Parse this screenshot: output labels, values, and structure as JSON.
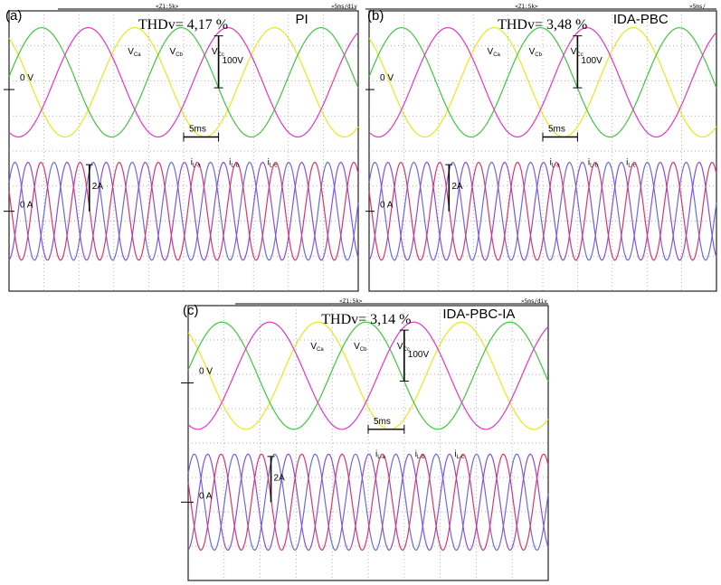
{
  "chart_data": [
    {
      "type": "line",
      "panel_label": "(a)",
      "controller": "PI",
      "thd_text": "THDv= 4,17 %",
      "header_trigger": "<Z1:5k>",
      "header_timebase": "»5ms/div",
      "voltage_labels": [
        "V",
        "V",
        "V"
      ],
      "voltage_subs": [
        "Ca",
        "Cb",
        "Cc"
      ],
      "current_labels": [
        "i",
        "i",
        "i"
      ],
      "current_subs": [
        "L-a",
        "L-b",
        "L-c"
      ],
      "zero_v_label": "0 V",
      "zero_a_label": "0 A",
      "scale_voltage": "100V",
      "scale_current": "2A",
      "scale_time": "5ms",
      "voltage_amplitude_v": 100,
      "voltage_period_ms": 20,
      "current_amplitude_a": 2,
      "current_period_ms": 5.6,
      "time_window_ms": 50,
      "colors": {
        "va": "#e8e81c",
        "vb": "#3cc83c",
        "vc": "#e633c8",
        "ia": "#6b6be0",
        "ib": "#8a4fd6",
        "ic": "#e0336b"
      }
    },
    {
      "type": "line",
      "panel_label": "(b)",
      "controller": "IDA-PBC",
      "thd_text": "THDv= 3,48 %",
      "header_trigger": "<Z1:5k>",
      "header_timebase": "»5ms/",
      "voltage_labels": [
        "V",
        "V",
        "V"
      ],
      "voltage_subs": [
        "Ca",
        "Cb",
        "Cc"
      ],
      "current_labels": [
        "i",
        "i",
        "i"
      ],
      "current_subs": [
        "L-a",
        "L-b",
        "L-c"
      ],
      "zero_v_label": "0 V",
      "zero_a_label": "0 A",
      "scale_voltage": "100V",
      "scale_current": "2A",
      "scale_time": "5ms",
      "voltage_amplitude_v": 100,
      "voltage_period_ms": 20,
      "current_amplitude_a": 2,
      "current_period_ms": 5.6,
      "time_window_ms": 50,
      "colors": {
        "va": "#e8e81c",
        "vb": "#3cc83c",
        "vc": "#e633c8",
        "ia": "#6b6be0",
        "ib": "#8a4fd6",
        "ic": "#e0336b"
      }
    },
    {
      "type": "line",
      "panel_label": "(c)",
      "controller": "IDA-PBC-IA",
      "thd_text": "THDv= 3,14 %",
      "header_trigger": "<Z1:5k>",
      "header_timebase": "»5ms/div",
      "voltage_labels": [
        "V",
        "V",
        "V"
      ],
      "voltage_subs": [
        "Ca",
        "Cb",
        "Cc"
      ],
      "current_labels": [
        "i",
        "i",
        "i"
      ],
      "current_subs": [
        "L-a",
        "L-b",
        "L-c"
      ],
      "zero_v_label": "0 V",
      "zero_a_label": "0 A",
      "scale_voltage": "100V",
      "scale_current": "2A",
      "scale_time": "5ms",
      "voltage_amplitude_v": 100,
      "voltage_period_ms": 20,
      "current_amplitude_a": 2,
      "current_period_ms": 5.6,
      "time_window_ms": 50,
      "colors": {
        "va": "#e8e81c",
        "vb": "#3cc83c",
        "vc": "#e633c8",
        "ia": "#6b6be0",
        "ib": "#8a4fd6",
        "ic": "#e0336b"
      }
    }
  ]
}
